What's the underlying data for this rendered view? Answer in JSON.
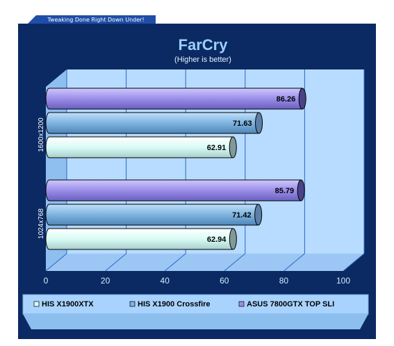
{
  "banner": {
    "text": "Tweaking Done Right Down Under!"
  },
  "colors": {
    "frame": "#0b2a63",
    "tab": "#1f4ea8",
    "plot_back": "#b7dcff",
    "plot_floor": "#9cc7f5",
    "gridline": "#2a66c4",
    "legend_bg": "#a9d3ff",
    "title": "#9bd0ff",
    "subtitle": "#e6f2ff",
    "tick": "#d6ecff"
  },
  "chart_data": {
    "type": "bar",
    "orientation": "horizontal",
    "title": "FarCry",
    "subtitle": "(Higher is better)",
    "xlabel": "",
    "ylabel": "",
    "xlim": [
      0,
      100
    ],
    "xticks": [
      "0",
      "20",
      "40",
      "60",
      "80",
      "100"
    ],
    "grid": true,
    "legend_position": "bottom",
    "categories": [
      "1600x1200",
      "1024x768"
    ],
    "series": [
      {
        "name": "HIS X1900XTX",
        "color": "#d9fbf6",
        "end": "#7f9a97",
        "values": [
          62.91,
          62.94
        ]
      },
      {
        "name": "HIS X1900 Crossfire",
        "color": "#7fb3df",
        "end": "#5b7fa6",
        "values": [
          71.63,
          71.42
        ]
      },
      {
        "name": "ASUS 7800GTX TOP SLI",
        "color": "#9a8ee8",
        "end": "#4a4386",
        "values": [
          86.26,
          85.79
        ]
      }
    ],
    "value_labels": {
      "1600x1200": [
        "62.91",
        "71.63",
        "86.26"
      ],
      "1024x768": [
        "62.94",
        "71.42",
        "85.79"
      ]
    }
  }
}
